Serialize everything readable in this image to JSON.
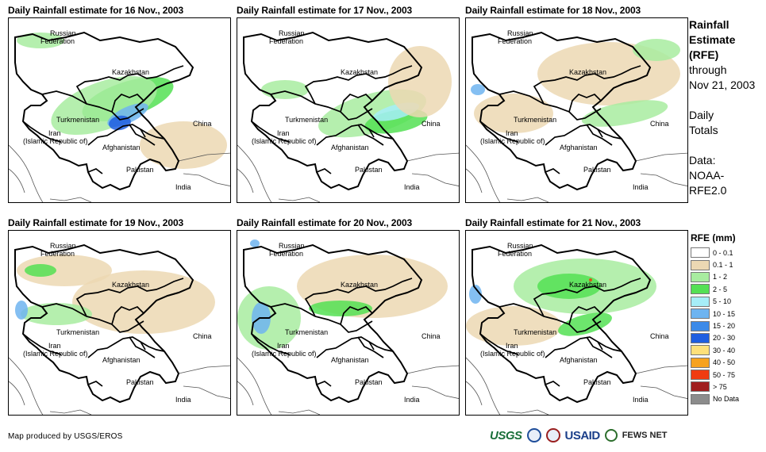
{
  "panels": [
    {
      "title": "Daily Rainfall estimate for 16 Nov., 2003"
    },
    {
      "title": "Daily Rainfall estimate for 17 Nov., 2003"
    },
    {
      "title": "Daily Rainfall estimate for 18 Nov., 2003"
    },
    {
      "title": "Daily Rainfall estimate for 19 Nov., 2003"
    },
    {
      "title": "Daily Rainfall estimate for 20 Nov., 2003"
    },
    {
      "title": "Daily Rainfall estimate for 21 Nov., 2003"
    }
  ],
  "map_labels": {
    "russia_1": "Russian",
    "russia_2": "Federation",
    "kazakhstan": "Kazakhstan",
    "turkmenistan": "Turkmenistan",
    "iran_1": "Iran",
    "iran_2": "(Islamic Republic of)",
    "afghanistan": "Afghanistan",
    "pakistan": "Pakistan",
    "china": "China",
    "india": "India"
  },
  "sidebar": {
    "title_1": "Rainfall",
    "title_2": "Estimate",
    "title_3": "(RFE)",
    "through": "through",
    "date": "Nov 21, 2003",
    "daily": "Daily",
    "totals": "Totals",
    "data": "Data:",
    "source_1": "NOAA-",
    "source_2": "RFE2.0"
  },
  "legend": {
    "title": "RFE (mm)",
    "items": [
      {
        "label": "0 - 0.1",
        "color": "#ffffff"
      },
      {
        "label": "0.1 - 1",
        "color": "#ecd8b3"
      },
      {
        "label": "1 - 2",
        "color": "#a8eca0"
      },
      {
        "label": "2 - 5",
        "color": "#54e054"
      },
      {
        "label": "5 - 10",
        "color": "#a6eef8"
      },
      {
        "label": "10 - 15",
        "color": "#6eb4f0"
      },
      {
        "label": "15 - 20",
        "color": "#3c8ae8"
      },
      {
        "label": "20 - 30",
        "color": "#1e5ee0"
      },
      {
        "label": "30 - 40",
        "color": "#fde07a"
      },
      {
        "label": "40 - 50",
        "color": "#f6a21e"
      },
      {
        "label": "50 - 75",
        "color": "#f03c12"
      },
      {
        "label": "> 75",
        "color": "#a01e1e"
      },
      {
        "label": "No Data",
        "color": "#8c8c8c"
      }
    ]
  },
  "credit": "Map produced by USGS/EROS",
  "logos": {
    "usgs": "USGS",
    "usaid": "USAID",
    "fews": "FEWS NET"
  }
}
